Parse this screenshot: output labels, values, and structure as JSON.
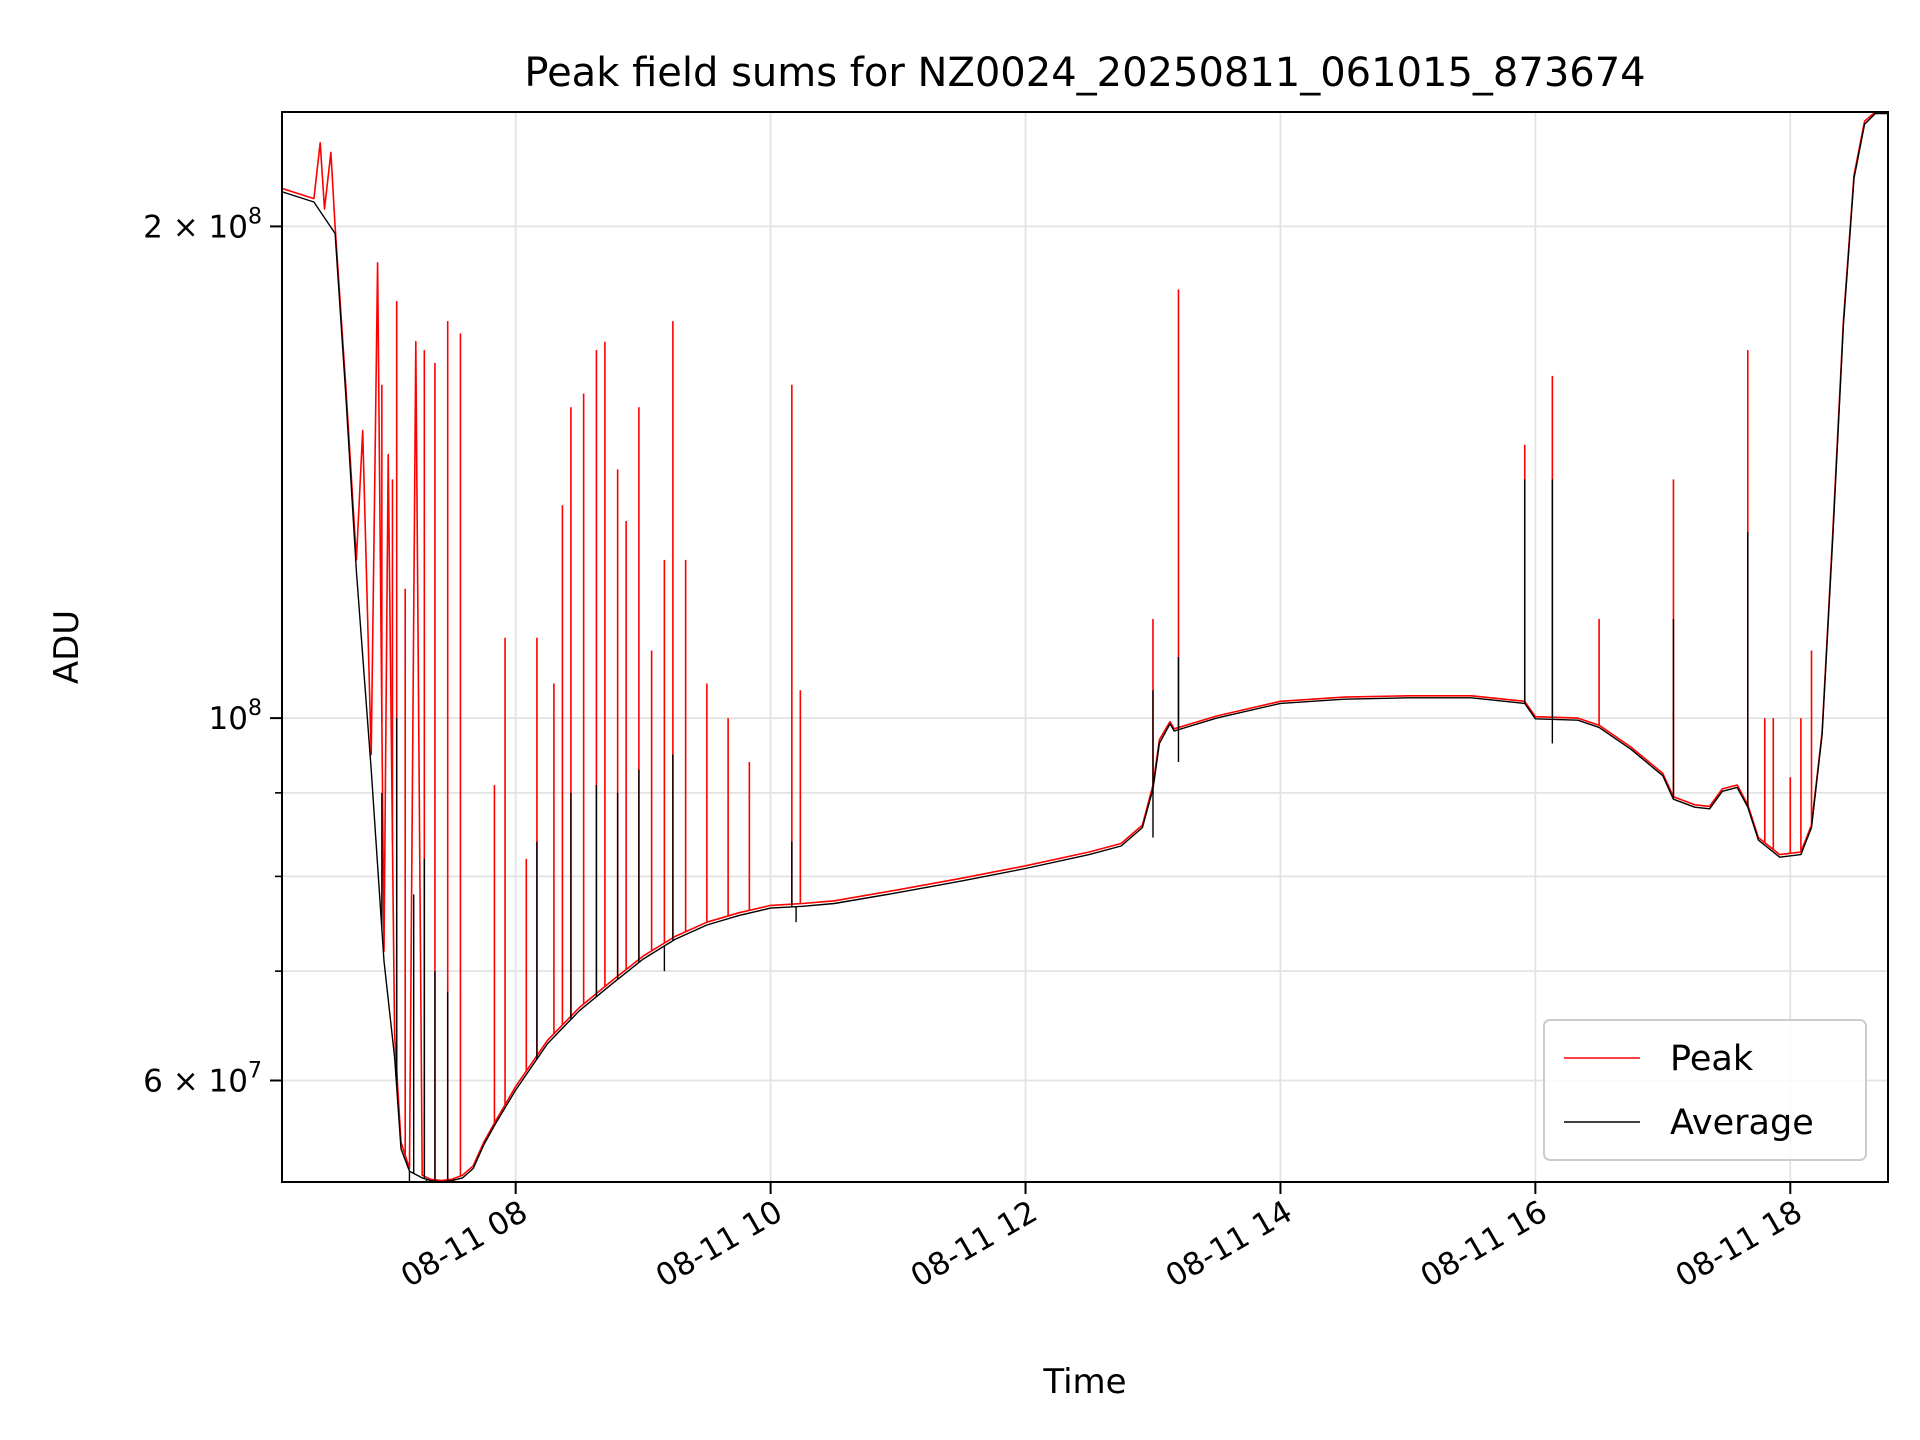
{
  "chart_data": {
    "type": "line",
    "title": "Peak field sums for NZ0024_20250811_061015_873674",
    "xlabel": "Time",
    "ylabel": "ADU",
    "y_scale": "log",
    "x_range": [
      "2025-08-11 06:10",
      "2025-08-11 18:46"
    ],
    "y_range": [
      52000000,
      235000000
    ],
    "x_ticks": [
      {
        "value": "2025-08-11 08:00",
        "label": "08-11 08"
      },
      {
        "value": "2025-08-11 10:00",
        "label": "08-11 10"
      },
      {
        "value": "2025-08-11 12:00",
        "label": "08-11 12"
      },
      {
        "value": "2025-08-11 14:00",
        "label": "08-11 14"
      },
      {
        "value": "2025-08-11 16:00",
        "label": "08-11 16"
      },
      {
        "value": "2025-08-11 18:00",
        "label": "08-11 18"
      }
    ],
    "y_ticks": [
      {
        "value": 60000000,
        "mantissa": "6",
        "exponent": "7"
      },
      {
        "value": 100000000,
        "mantissa": "",
        "exponent": "8"
      },
      {
        "value": 200000000,
        "mantissa": "2",
        "exponent": "8"
      }
    ],
    "y_minor_ticks": [
      70000000,
      80000000,
      90000000
    ],
    "grid": true,
    "legend": {
      "position": "bottom-right",
      "entries": [
        "Peak",
        "Average"
      ]
    },
    "colors": {
      "Peak": "#ff0000",
      "Average": "#000000"
    },
    "series": [
      {
        "name": "Peak",
        "points": [
          [
            "2025-08-11 06:10",
            211000000
          ],
          [
            "2025-08-11 06:25",
            208000000
          ],
          [
            "2025-08-11 06:28",
            225000000
          ],
          [
            "2025-08-11 06:30",
            205000000
          ],
          [
            "2025-08-11 06:33",
            222000000
          ],
          [
            "2025-08-11 06:35",
            200000000
          ],
          [
            "2025-08-11 06:40",
            160000000
          ],
          [
            "2025-08-11 06:45",
            125000000
          ],
          [
            "2025-08-11 06:48",
            150000000
          ],
          [
            "2025-08-11 06:52",
            95000000
          ],
          [
            "2025-08-11 06:55",
            190000000
          ],
          [
            "2025-08-11 06:58",
            72000000
          ],
          [
            "2025-08-11 07:00",
            145000000
          ],
          [
            "2025-08-11 07:03",
            64000000
          ],
          [
            "2025-08-11 07:06",
            55000000
          ],
          [
            "2025-08-11 07:10",
            53000000
          ],
          [
            "2025-08-11 07:13",
            170000000
          ],
          [
            "2025-08-11 07:16",
            52500000
          ],
          [
            "2025-08-11 07:20",
            52200000
          ],
          [
            "2025-08-11 07:25",
            52100000
          ],
          [
            "2025-08-11 07:30",
            52200000
          ],
          [
            "2025-08-11 07:35",
            52500000
          ],
          [
            "2025-08-11 07:40",
            53200000
          ],
          [
            "2025-08-11 07:45",
            55000000
          ],
          [
            "2025-08-11 07:50",
            56500000
          ],
          [
            "2025-08-11 08:00",
            59500000
          ],
          [
            "2025-08-11 08:15",
            63500000
          ],
          [
            "2025-08-11 08:30",
            66500000
          ],
          [
            "2025-08-11 08:45",
            69000000
          ],
          [
            "2025-08-11 09:00",
            71500000
          ],
          [
            "2025-08-11 09:15",
            73500000
          ],
          [
            "2025-08-11 09:30",
            75000000
          ],
          [
            "2025-08-11 09:45",
            76000000
          ],
          [
            "2025-08-11 10:00",
            76800000
          ],
          [
            "2025-08-11 10:15",
            77000000
          ],
          [
            "2025-08-11 10:30",
            77300000
          ],
          [
            "2025-08-11 11:00",
            78500000
          ],
          [
            "2025-08-11 11:30",
            79800000
          ],
          [
            "2025-08-11 12:00",
            81200000
          ],
          [
            "2025-08-11 12:30",
            82800000
          ],
          [
            "2025-08-11 12:45",
            83800000
          ],
          [
            "2025-08-11 12:55",
            86000000
          ],
          [
            "2025-08-11 13:00",
            91000000
          ],
          [
            "2025-08-11 13:03",
            97000000
          ],
          [
            "2025-08-11 13:08",
            99500000
          ],
          [
            "2025-08-11 13:10",
            98500000
          ],
          [
            "2025-08-11 13:30",
            100300000
          ],
          [
            "2025-08-11 14:00",
            102400000
          ],
          [
            "2025-08-11 14:30",
            103000000
          ],
          [
            "2025-08-11 15:00",
            103200000
          ],
          [
            "2025-08-11 15:30",
            103200000
          ],
          [
            "2025-08-11 15:55",
            102400000
          ],
          [
            "2025-08-11 16:00",
            100200000
          ],
          [
            "2025-08-11 16:20",
            100000000
          ],
          [
            "2025-08-11 16:30",
            99000000
          ],
          [
            "2025-08-11 16:45",
            96000000
          ],
          [
            "2025-08-11 17:00",
            92500000
          ],
          [
            "2025-08-11 17:05",
            89500000
          ],
          [
            "2025-08-11 17:15",
            88500000
          ],
          [
            "2025-08-11 17:22",
            88300000
          ],
          [
            "2025-08-11 17:28",
            90500000
          ],
          [
            "2025-08-11 17:35",
            91000000
          ],
          [
            "2025-08-11 17:40",
            88500000
          ],
          [
            "2025-08-11 17:45",
            84500000
          ],
          [
            "2025-08-11 17:55",
            82500000
          ],
          [
            "2025-08-11 18:05",
            82800000
          ],
          [
            "2025-08-11 18:10",
            86000000
          ],
          [
            "2025-08-11 18:15",
            98000000
          ],
          [
            "2025-08-11 18:20",
            130000000
          ],
          [
            "2025-08-11 18:25",
            175000000
          ],
          [
            "2025-08-11 18:30",
            215000000
          ],
          [
            "2025-08-11 18:35",
            232000000
          ],
          [
            "2025-08-11 18:40",
            235000000
          ],
          [
            "2025-08-11 18:46",
            235000000
          ]
        ],
        "spikes": [
          [
            "2025-08-11 06:57",
            160000000
          ],
          [
            "2025-08-11 07:02",
            140000000
          ],
          [
            "2025-08-11 07:04",
            180000000
          ],
          [
            "2025-08-11 07:08",
            120000000
          ],
          [
            "2025-08-11 07:17",
            168000000
          ],
          [
            "2025-08-11 07:22",
            165000000
          ],
          [
            "2025-08-11 07:28",
            175000000
          ],
          [
            "2025-08-11 07:34",
            172000000
          ],
          [
            "2025-08-11 07:50",
            91000000
          ],
          [
            "2025-08-11 07:55",
            112000000
          ],
          [
            "2025-08-11 08:05",
            82000000
          ],
          [
            "2025-08-11 08:10",
            112000000
          ],
          [
            "2025-08-11 08:18",
            105000000
          ],
          [
            "2025-08-11 08:22",
            135000000
          ],
          [
            "2025-08-11 08:26",
            155000000
          ],
          [
            "2025-08-11 08:32",
            158000000
          ],
          [
            "2025-08-11 08:38",
            168000000
          ],
          [
            "2025-08-11 08:42",
            170000000
          ],
          [
            "2025-08-11 08:48",
            142000000
          ],
          [
            "2025-08-11 08:52",
            132000000
          ],
          [
            "2025-08-11 08:58",
            155000000
          ],
          [
            "2025-08-11 09:04",
            110000000
          ],
          [
            "2025-08-11 09:10",
            125000000
          ],
          [
            "2025-08-11 09:14",
            175000000
          ],
          [
            "2025-08-11 09:20",
            125000000
          ],
          [
            "2025-08-11 09:30",
            105000000
          ],
          [
            "2025-08-11 09:40",
            100000000
          ],
          [
            "2025-08-11 09:50",
            94000000
          ],
          [
            "2025-08-11 10:10",
            160000000
          ],
          [
            "2025-08-11 10:14",
            104000000
          ],
          [
            "2025-08-11 13:00",
            115000000
          ],
          [
            "2025-08-11 13:12",
            183000000
          ],
          [
            "2025-08-11 15:55",
            147000000
          ],
          [
            "2025-08-11 16:08",
            162000000
          ],
          [
            "2025-08-11 16:30",
            115000000
          ],
          [
            "2025-08-11 17:05",
            140000000
          ],
          [
            "2025-08-11 17:40",
            168000000
          ],
          [
            "2025-08-11 17:48",
            100000000
          ],
          [
            "2025-08-11 17:52",
            100000000
          ],
          [
            "2025-08-11 18:00",
            92000000
          ],
          [
            "2025-08-11 18:05",
            100000000
          ],
          [
            "2025-08-11 18:10",
            110000000
          ]
        ]
      },
      {
        "name": "Average",
        "points": [
          [
            "2025-08-11 06:10",
            210000000
          ],
          [
            "2025-08-11 06:25",
            207000000
          ],
          [
            "2025-08-11 06:35",
            198000000
          ],
          [
            "2025-08-11 06:40",
            158000000
          ],
          [
            "2025-08-11 06:45",
            123000000
          ],
          [
            "2025-08-11 06:52",
            93000000
          ],
          [
            "2025-08-11 06:58",
            71000000
          ],
          [
            "2025-08-11 07:03",
            62000000
          ],
          [
            "2025-08-11 07:06",
            54500000
          ],
          [
            "2025-08-11 07:10",
            52800000
          ],
          [
            "2025-08-11 07:16",
            52300000
          ],
          [
            "2025-08-11 07:20",
            52100000
          ],
          [
            "2025-08-11 07:25",
            52000000
          ],
          [
            "2025-08-11 07:30",
            52100000
          ],
          [
            "2025-08-11 07:35",
            52300000
          ],
          [
            "2025-08-11 07:40",
            53000000
          ],
          [
            "2025-08-11 07:45",
            54800000
          ],
          [
            "2025-08-11 07:50",
            56300000
          ],
          [
            "2025-08-11 08:00",
            59200000
          ],
          [
            "2025-08-11 08:15",
            63200000
          ],
          [
            "2025-08-11 08:30",
            66200000
          ],
          [
            "2025-08-11 08:45",
            68700000
          ],
          [
            "2025-08-11 09:00",
            71200000
          ],
          [
            "2025-08-11 09:15",
            73200000
          ],
          [
            "2025-08-11 09:30",
            74700000
          ],
          [
            "2025-08-11 09:45",
            75700000
          ],
          [
            "2025-08-11 10:00",
            76500000
          ],
          [
            "2025-08-11 10:15",
            76700000
          ],
          [
            "2025-08-11 10:30",
            77000000
          ],
          [
            "2025-08-11 11:00",
            78200000
          ],
          [
            "2025-08-11 11:30",
            79500000
          ],
          [
            "2025-08-11 12:00",
            80900000
          ],
          [
            "2025-08-11 12:30",
            82500000
          ],
          [
            "2025-08-11 12:45",
            83500000
          ],
          [
            "2025-08-11 12:55",
            85700000
          ],
          [
            "2025-08-11 13:00",
            90500000
          ],
          [
            "2025-08-11 13:03",
            96500000
          ],
          [
            "2025-08-11 13:08",
            99200000
          ],
          [
            "2025-08-11 13:10",
            98200000
          ],
          [
            "2025-08-11 13:30",
            100000000
          ],
          [
            "2025-08-11 14:00",
            102100000
          ],
          [
            "2025-08-11 14:30",
            102700000
          ],
          [
            "2025-08-11 15:00",
            102900000
          ],
          [
            "2025-08-11 15:30",
            102900000
          ],
          [
            "2025-08-11 15:55",
            102100000
          ],
          [
            "2025-08-11 16:00",
            99900000
          ],
          [
            "2025-08-11 16:20",
            99700000
          ],
          [
            "2025-08-11 16:30",
            98700000
          ],
          [
            "2025-08-11 16:45",
            95700000
          ],
          [
            "2025-08-11 17:00",
            92200000
          ],
          [
            "2025-08-11 17:05",
            89200000
          ],
          [
            "2025-08-11 17:15",
            88200000
          ],
          [
            "2025-08-11 17:22",
            88000000
          ],
          [
            "2025-08-11 17:28",
            90200000
          ],
          [
            "2025-08-11 17:35",
            90700000
          ],
          [
            "2025-08-11 17:40",
            88200000
          ],
          [
            "2025-08-11 17:45",
            84200000
          ],
          [
            "2025-08-11 17:55",
            82200000
          ],
          [
            "2025-08-11 18:05",
            82500000
          ],
          [
            "2025-08-11 18:10",
            85700000
          ],
          [
            "2025-08-11 18:15",
            97700000
          ],
          [
            "2025-08-11 18:20",
            129000000
          ],
          [
            "2025-08-11 18:25",
            174000000
          ],
          [
            "2025-08-11 18:30",
            214000000
          ],
          [
            "2025-08-11 18:35",
            231000000
          ],
          [
            "2025-08-11 18:40",
            234500000
          ],
          [
            "2025-08-11 18:46",
            234500000
          ]
        ],
        "spikes": [
          [
            "2025-08-11 06:57",
            90000000
          ],
          [
            "2025-08-11 07:04",
            100000000
          ],
          [
            "2025-08-11 07:12",
            78000000
          ],
          [
            "2025-08-11 07:17",
            82000000
          ],
          [
            "2025-08-11 07:22",
            70000000
          ],
          [
            "2025-08-11 07:28",
            68000000
          ],
          [
            "2025-08-11 08:10",
            84000000
          ],
          [
            "2025-08-11 08:26",
            90000000
          ],
          [
            "2025-08-11 08:38",
            91000000
          ],
          [
            "2025-08-11 08:48",
            90000000
          ],
          [
            "2025-08-11 08:58",
            93000000
          ],
          [
            "2025-08-11 09:14",
            95000000
          ],
          [
            "2025-08-11 10:10",
            84000000
          ],
          [
            "2025-08-11 13:00",
            104000000
          ],
          [
            "2025-08-11 13:12",
            109000000
          ],
          [
            "2025-08-11 15:55",
            140000000
          ],
          [
            "2025-08-11 16:08",
            140000000
          ],
          [
            "2025-08-11 17:05",
            115000000
          ],
          [
            "2025-08-11 17:40",
            130000000
          ]
        ],
        "dips": [
          [
            "2025-08-11 07:10",
            50500000
          ],
          [
            "2025-08-11 07:18",
            51000000
          ],
          [
            "2025-08-11 09:10",
            70000000
          ],
          [
            "2025-08-11 10:12",
            75000000
          ],
          [
            "2025-08-11 13:00",
            84500000
          ],
          [
            "2025-08-11 13:12",
            94000000
          ],
          [
            "2025-08-11 16:08",
            96500000
          ]
        ]
      }
    ]
  }
}
